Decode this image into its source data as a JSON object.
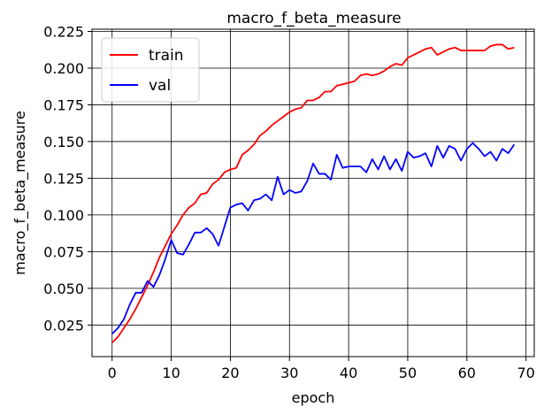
{
  "chart_data": {
    "type": "line",
    "title": "macro_f_beta_measure",
    "xlabel": "epoch",
    "ylabel": "macro_f_beta_measure",
    "xlim": [
      -3.4,
      71.4
    ],
    "ylim": [
      0.0035,
      0.2265
    ],
    "xticks": [
      0,
      10,
      20,
      30,
      40,
      50,
      60,
      70
    ],
    "xtick_labels": [
      "0",
      "10",
      "20",
      "30",
      "40",
      "50",
      "60",
      "70"
    ],
    "yticks": [
      0.025,
      0.05,
      0.075,
      0.1,
      0.125,
      0.15,
      0.175,
      0.2,
      0.225
    ],
    "ytick_labels": [
      "0.025",
      "0.050",
      "0.075",
      "0.100",
      "0.125",
      "0.150",
      "0.175",
      "0.200",
      "0.225"
    ],
    "grid": true,
    "legend_position": "top-left",
    "series": [
      {
        "name": "train",
        "color": "#ff0000",
        "x": [
          0,
          1,
          2,
          3,
          4,
          5,
          6,
          7,
          8,
          9,
          10,
          11,
          12,
          13,
          14,
          15,
          16,
          17,
          18,
          19,
          20,
          21,
          22,
          23,
          24,
          25,
          26,
          27,
          28,
          29,
          30,
          31,
          32,
          33,
          34,
          35,
          36,
          37,
          38,
          39,
          40,
          41,
          42,
          43,
          44,
          45,
          46,
          47,
          48,
          49,
          50,
          51,
          52,
          53,
          54,
          55,
          56,
          57,
          58,
          59,
          60,
          61,
          62,
          63,
          64,
          65,
          66,
          67,
          68
        ],
        "values": [
          0.013,
          0.017,
          0.023,
          0.029,
          0.036,
          0.044,
          0.052,
          0.061,
          0.071,
          0.079,
          0.087,
          0.093,
          0.1,
          0.105,
          0.108,
          0.114,
          0.115,
          0.121,
          0.124,
          0.129,
          0.131,
          0.132,
          0.141,
          0.144,
          0.148,
          0.154,
          0.157,
          0.161,
          0.164,
          0.167,
          0.17,
          0.172,
          0.173,
          0.178,
          0.178,
          0.18,
          0.184,
          0.184,
          0.188,
          0.189,
          0.19,
          0.191,
          0.195,
          0.196,
          0.195,
          0.196,
          0.198,
          0.201,
          0.203,
          0.202,
          0.207,
          0.209,
          0.211,
          0.213,
          0.214,
          0.209,
          0.211,
          0.213,
          0.214,
          0.212,
          0.212,
          0.212,
          0.212,
          0.212,
          0.215,
          0.216,
          0.216,
          0.213,
          0.214
        ]
      },
      {
        "name": "val",
        "color": "#0000ff",
        "x": [
          0,
          1,
          2,
          3,
          4,
          5,
          6,
          7,
          8,
          9,
          10,
          11,
          12,
          13,
          14,
          15,
          16,
          17,
          18,
          19,
          20,
          21,
          22,
          23,
          24,
          25,
          26,
          27,
          28,
          29,
          30,
          31,
          32,
          33,
          34,
          35,
          36,
          37,
          38,
          39,
          40,
          41,
          42,
          43,
          44,
          45,
          46,
          47,
          48,
          49,
          50,
          51,
          52,
          53,
          54,
          55,
          56,
          57,
          58,
          59,
          60,
          61,
          62,
          63,
          64,
          65,
          66,
          67,
          68
        ],
        "values": [
          0.019,
          0.023,
          0.029,
          0.039,
          0.047,
          0.047,
          0.055,
          0.051,
          0.059,
          0.07,
          0.083,
          0.074,
          0.073,
          0.08,
          0.088,
          0.088,
          0.091,
          0.087,
          0.079,
          0.092,
          0.105,
          0.107,
          0.108,
          0.103,
          0.11,
          0.111,
          0.114,
          0.11,
          0.126,
          0.114,
          0.117,
          0.115,
          0.116,
          0.123,
          0.135,
          0.128,
          0.128,
          0.124,
          0.141,
          0.132,
          0.133,
          0.133,
          0.133,
          0.129,
          0.138,
          0.131,
          0.14,
          0.131,
          0.138,
          0.13,
          0.143,
          0.139,
          0.14,
          0.142,
          0.133,
          0.147,
          0.139,
          0.147,
          0.145,
          0.137,
          0.145,
          0.149,
          0.145,
          0.14,
          0.143,
          0.137,
          0.145,
          0.142,
          0.148
        ]
      }
    ]
  }
}
